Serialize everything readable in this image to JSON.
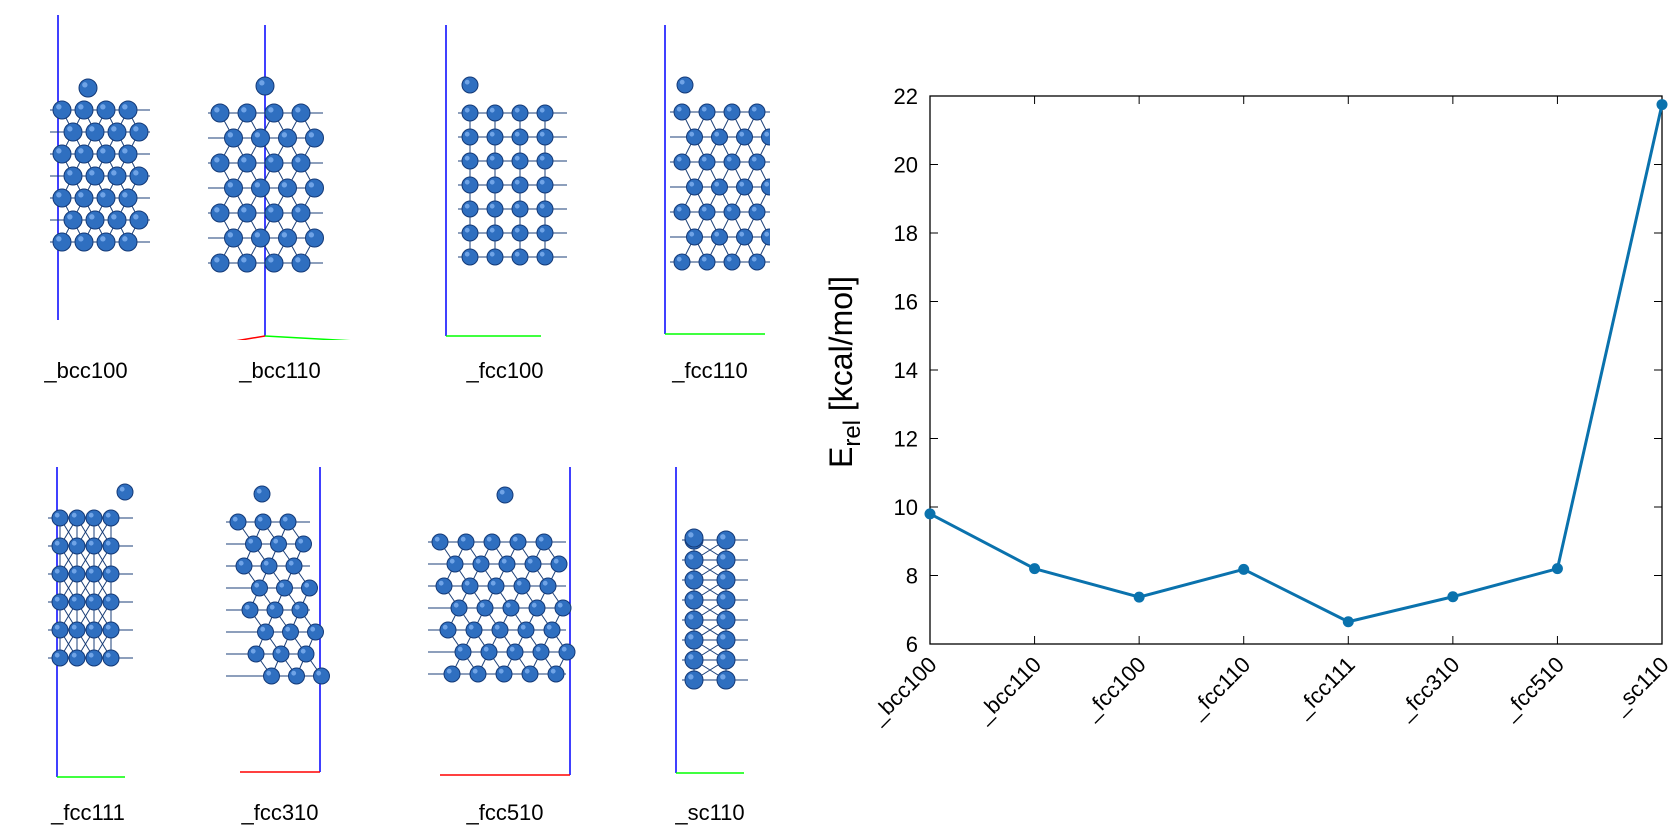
{
  "structures": [
    {
      "label": "_bcc100"
    },
    {
      "label": "_bcc110"
    },
    {
      "label": "_fcc100"
    },
    {
      "label": "_fcc110"
    },
    {
      "label": "_fcc111"
    },
    {
      "label": "_fcc310"
    },
    {
      "label": "_fcc510"
    },
    {
      "label": "_sc110"
    }
  ],
  "colors": {
    "atom": "#2f6fc0",
    "atom_dark": "#143a78",
    "bond": "#1b3f78",
    "axis_z": "#0000ff",
    "axis_x": "#ff0000",
    "axis_y": "#00ff00",
    "line": "#0a72ad"
  },
  "chart_data": {
    "type": "line",
    "categories": [
      "_bcc100",
      "_bcc110",
      "_fcc100",
      "_fcc110",
      "_fcc111",
      "_fcc310",
      "_fcc510",
      "_sc110"
    ],
    "series": [
      {
        "values": [
          9.8,
          8.2,
          7.37,
          8.18,
          6.65,
          7.38,
          8.2,
          21.75
        ]
      }
    ],
    "ylabel_main": "E",
    "ylabel_sub": "rel",
    "ylabel_rest": " [kcal/mol]",
    "xlabel": "",
    "ylim": [
      6,
      22
    ],
    "yticks": [
      6,
      8,
      10,
      12,
      14,
      16,
      18,
      20,
      22
    ],
    "grid": false
  }
}
